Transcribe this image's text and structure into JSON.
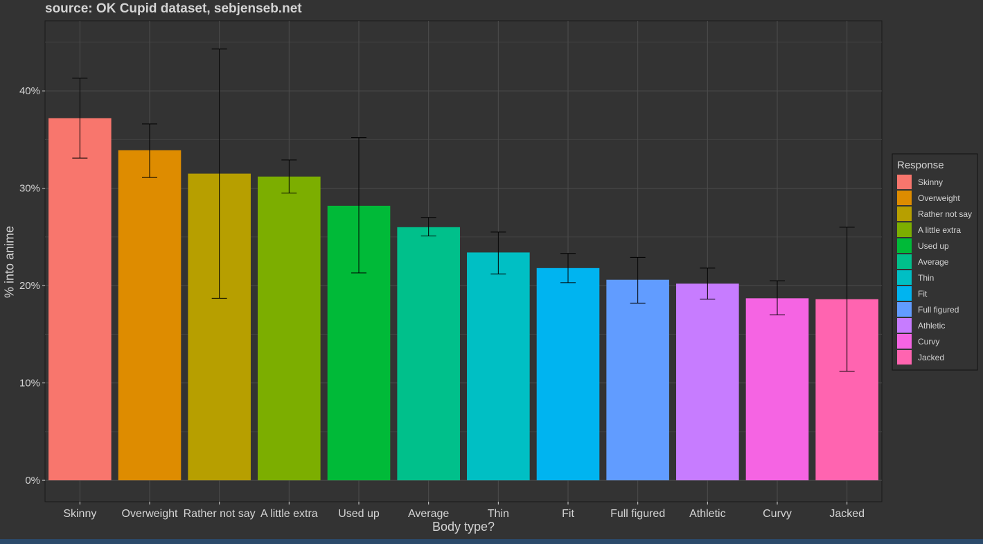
{
  "chart_data": {
    "type": "bar",
    "title": "source: OK Cupid dataset, sebjenseb.net",
    "xlabel": "Body type?",
    "ylabel": "% into anime",
    "ylim": [
      -0.022,
      0.472
    ],
    "yticks": [
      0,
      0.1,
      0.2,
      0.3,
      0.4
    ],
    "ytick_labels": [
      "0%",
      "10%",
      "20%",
      "30%",
      "40%"
    ],
    "grid": true,
    "legend_title": "Response",
    "legend_position": "right",
    "categories": [
      "Skinny",
      "Overweight",
      "Rather not say",
      "A little extra",
      "Used up",
      "Average",
      "Thin",
      "Fit",
      "Full figured",
      "Athletic",
      "Curvy",
      "Jacked"
    ],
    "values": [
      0.372,
      0.339,
      0.315,
      0.312,
      0.282,
      0.26,
      0.234,
      0.218,
      0.206,
      0.202,
      0.187,
      0.186
    ],
    "error_low": [
      0.331,
      0.311,
      0.187,
      0.295,
      0.213,
      0.251,
      0.212,
      0.203,
      0.182,
      0.186,
      0.17,
      0.112
    ],
    "error_high": [
      0.413,
      0.366,
      0.443,
      0.329,
      0.352,
      0.27,
      0.255,
      0.233,
      0.229,
      0.218,
      0.205,
      0.26
    ],
    "colors": [
      "#F8766D",
      "#DE8C00",
      "#B79F00",
      "#7CAE00",
      "#00BA38",
      "#00C08B",
      "#00BFC4",
      "#00B4F0",
      "#619CFF",
      "#C77CFF",
      "#F564E3",
      "#FF64B0"
    ]
  }
}
